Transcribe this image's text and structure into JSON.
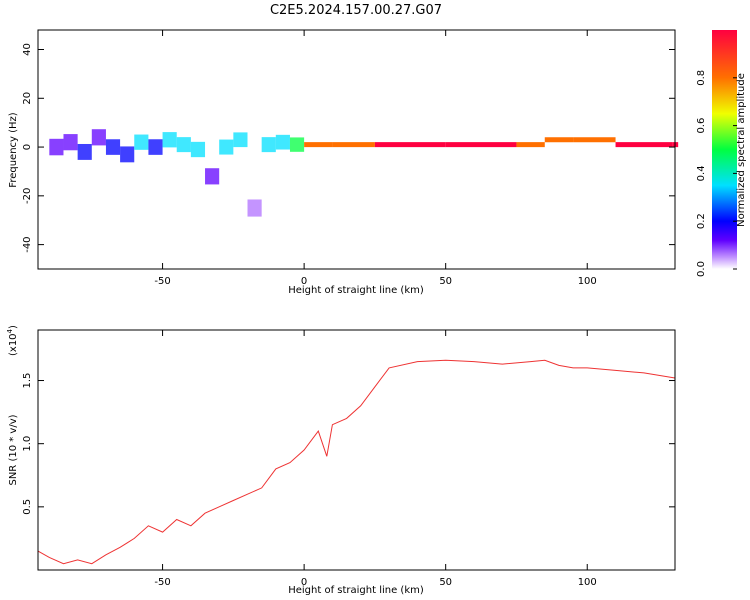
{
  "title": "C2E5.2024.157.00.27.G07",
  "chart_data": [
    {
      "type": "heatmap",
      "xlabel": "Height of straight line (km)",
      "ylabel": "Frequency (Hz)",
      "xlim": [
        -94,
        131
      ],
      "ylim": [
        -50,
        48
      ],
      "xticks": [
        -50,
        0,
        50,
        100
      ],
      "yticks": [
        -40,
        -20,
        0,
        20,
        40
      ],
      "grid": false,
      "colorbar": {
        "label": "Normalized spectral amplitude",
        "range": [
          0.0,
          1.0
        ],
        "ticks": [
          0.0,
          0.2,
          0.4,
          0.6,
          0.8
        ],
        "colors": [
          "#ffffff",
          "#b070ff",
          "#6000ff",
          "#0000ff",
          "#00e0ff",
          "#00ff40",
          "#f0ff00",
          "#ff7000",
          "#ff0040"
        ]
      },
      "series": [
        {
          "values": [
            {
              "x": -90,
              "y": 0,
              "v": 0.25
            },
            {
              "x": -85,
              "y": 2,
              "v": 0.3
            },
            {
              "x": -80,
              "y": -2,
              "v": 0.35
            },
            {
              "x": -75,
              "y": 4,
              "v": 0.3
            },
            {
              "x": -70,
              "y": 0,
              "v": 0.4
            },
            {
              "x": -65,
              "y": -3,
              "v": 0.35
            },
            {
              "x": -60,
              "y": 2,
              "v": 0.45
            },
            {
              "x": -55,
              "y": 0,
              "v": 0.4
            },
            {
              "x": -50,
              "y": 3,
              "v": 0.45
            },
            {
              "x": -45,
              "y": 1,
              "v": 0.5
            },
            {
              "x": -40,
              "y": -1,
              "v": 0.45
            },
            {
              "x": -35,
              "y": -12,
              "v": 0.3
            },
            {
              "x": -30,
              "y": 0,
              "v": 0.5
            },
            {
              "x": -25,
              "y": 3,
              "v": 0.55
            },
            {
              "x": -20,
              "y": -25,
              "v": 0.15
            },
            {
              "x": -15,
              "y": 1,
              "v": 0.5
            },
            {
              "x": -10,
              "y": 2,
              "v": 0.55
            },
            {
              "x": -5,
              "y": 1,
              "v": 0.6
            },
            {
              "x": 0,
              "y": 1,
              "v": 0.85
            },
            {
              "x": 10,
              "y": 1,
              "v": 0.9
            },
            {
              "x": 25,
              "y": 1,
              "v": 0.95
            },
            {
              "x": 50,
              "y": 1,
              "v": 0.95
            },
            {
              "x": 75,
              "y": 1,
              "v": 0.9
            },
            {
              "x": 85,
              "y": 3,
              "v": 0.85
            },
            {
              "x": 95,
              "y": 3,
              "v": 0.9
            },
            {
              "x": 110,
              "y": 1,
              "v": 0.95
            },
            {
              "x": 130,
              "y": 1,
              "v": 0.95
            }
          ]
        }
      ]
    },
    {
      "type": "line",
      "xlabel": "Height of straight line (km)",
      "ylabel": "SNR (10 * v/v)",
      "y_multiplier_label": "(x10",
      "y_multiplier_exp": "4",
      "y_multiplier_close": ")",
      "xlim": [
        -94,
        131
      ],
      "ylim": [
        0.0,
        1.9
      ],
      "xticks": [
        -50,
        0,
        50,
        100
      ],
      "yticks": [
        0.5,
        1.0,
        1.5
      ],
      "grid": false,
      "color": "#ee3333",
      "series": [
        {
          "x": [
            -94,
            -90,
            -85,
            -80,
            -75,
            -70,
            -65,
            -60,
            -55,
            -50,
            -45,
            -40,
            -35,
            -30,
            -25,
            -20,
            -15,
            -10,
            -5,
            0,
            5,
            8,
            10,
            15,
            20,
            25,
            30,
            40,
            50,
            60,
            70,
            80,
            85,
            90,
            95,
            100,
            110,
            120,
            131
          ],
          "values": [
            0.15,
            0.1,
            0.05,
            0.08,
            0.05,
            0.12,
            0.18,
            0.25,
            0.35,
            0.3,
            0.4,
            0.35,
            0.45,
            0.5,
            0.55,
            0.6,
            0.65,
            0.8,
            0.85,
            0.95,
            1.1,
            0.9,
            1.15,
            1.2,
            1.3,
            1.45,
            1.6,
            1.65,
            1.66,
            1.65,
            1.63,
            1.65,
            1.66,
            1.62,
            1.6,
            1.6,
            1.58,
            1.56,
            1.52
          ]
        }
      ]
    }
  ]
}
